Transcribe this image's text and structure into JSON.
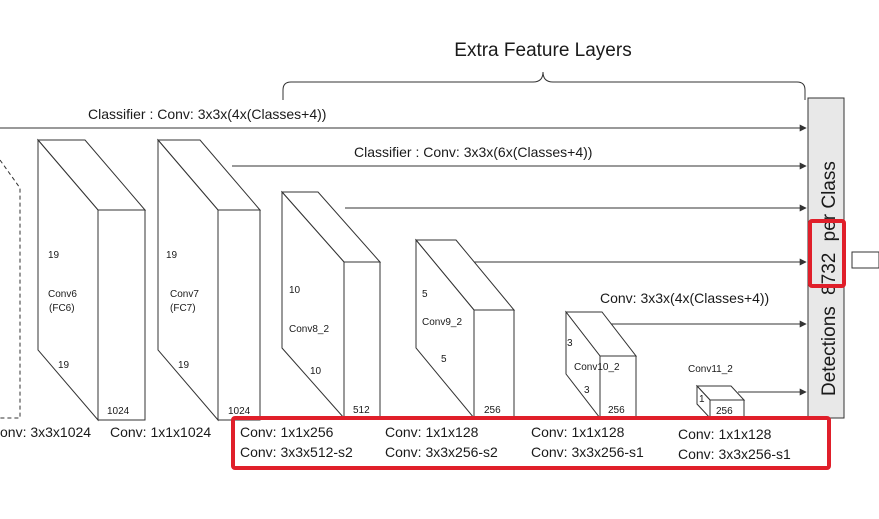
{
  "title": "Extra Feature Layers",
  "classifiers": {
    "top": "Classifier : Conv: 3x3x(4x(Classes+4))",
    "second": "Classifier : Conv: 3x3x(6x(Classes+4))",
    "third": "Conv: 3x3x(4x(Classes+4))"
  },
  "detections": {
    "pre": "Detections",
    "number": "8732",
    "post": "per Class"
  },
  "blocks": {
    "conv6": {
      "name": "Conv6",
      "sub": "(FC6)",
      "dim_top": "19",
      "dim_bottom": "19",
      "depth": "1024"
    },
    "conv7": {
      "name": "Conv7",
      "sub": "(FC7)",
      "dim_top": "19",
      "dim_bottom": "19",
      "depth": "1024"
    },
    "conv8": {
      "name": "Conv8_2",
      "dim_top": "10",
      "dim_bottom": "10",
      "depth": "512"
    },
    "conv9": {
      "name": "Conv9_2",
      "dim_top": "5",
      "dim_bottom": "5",
      "depth": "256"
    },
    "conv10": {
      "name": "Conv10_2",
      "dim_top": "3",
      "dim_bottom": "3",
      "depth": "256"
    },
    "conv11": {
      "name": "Conv11_2",
      "dim_top": "1",
      "depth": "256"
    }
  },
  "conv_labels": {
    "left1": "onv: 3x3x1024",
    "left2": "Conv: 1x1x1024",
    "c8a": "Conv: 1x1x256",
    "c8b": "Conv:  3x3x512-s2",
    "c9a": "Conv: 1x1x128",
    "c9b": "Conv: 3x3x256-s2",
    "c10a": "Conv: 1x1x128",
    "c10b": "Conv: 3x3x256-s1",
    "c11a": "Conv: 1x1x128",
    "c11b": "Conv: 3x3x256-s1"
  },
  "colors": {
    "highlight": "#e01f2a",
    "stroke": "#333333",
    "panel": "#e8e8e8"
  }
}
